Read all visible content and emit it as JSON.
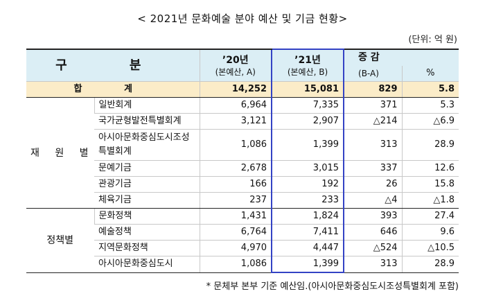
{
  "title": "< 2021년 문화예술 분야 예산 및 기금 현황>",
  "unit": "(단위: 억 원)",
  "header": {
    "division": "구 분",
    "y20": "’20년",
    "y20_sub": "(본예산, A)",
    "y21": "’21년",
    "y21_sub": "(본예산, B)",
    "change": "증 감",
    "change_sub": "(B-A)",
    "pct": "%"
  },
  "total": {
    "label": "합 계",
    "y20": "14,252",
    "y21": "15,081",
    "diff": "829",
    "pct": "5.8"
  },
  "groups": [
    {
      "label": "재 원 별",
      "rows": [
        {
          "name": "일반회계",
          "y20": "6,964",
          "y21": "7,335",
          "diff": "371",
          "pct": "5.3"
        },
        {
          "name": "국가균형발전특별회계",
          "y20": "3,121",
          "y21": "2,907",
          "diff": "△214",
          "pct": "△6.9"
        },
        {
          "name": "아시아문화중심도시조성특별회계",
          "y20": "1,086",
          "y21": "1,399",
          "diff": "313",
          "pct": "28.9"
        },
        {
          "name": "문예기금",
          "y20": "2,678",
          "y21": "3,015",
          "diff": "337",
          "pct": "12.6"
        },
        {
          "name": "관광기금",
          "y20": "166",
          "y21": "192",
          "diff": "26",
          "pct": "15.8"
        },
        {
          "name": "체육기금",
          "y20": "237",
          "y21": "233",
          "diff": "△4",
          "pct": "△1.8"
        }
      ]
    },
    {
      "label": "정책별",
      "rows": [
        {
          "name": "문화정책",
          "y20": "1,431",
          "y21": "1,824",
          "diff": "393",
          "pct": "27.4"
        },
        {
          "name": "예술정책",
          "y20": "6,764",
          "y21": "7,411",
          "diff": "646",
          "pct": "9.6"
        },
        {
          "name": "지역문화정책",
          "y20": "4,970",
          "y21": "4,447",
          "diff": "△524",
          "pct": "△10.5"
        },
        {
          "name": "아시아문화중심도시",
          "y20": "1,086",
          "y21": "1,399",
          "diff": "313",
          "pct": "28.9"
        }
      ]
    }
  ],
  "note": "* 문체부 본부 기준 예산임.(아시아문화중심도시조성특별회계 포함)"
}
